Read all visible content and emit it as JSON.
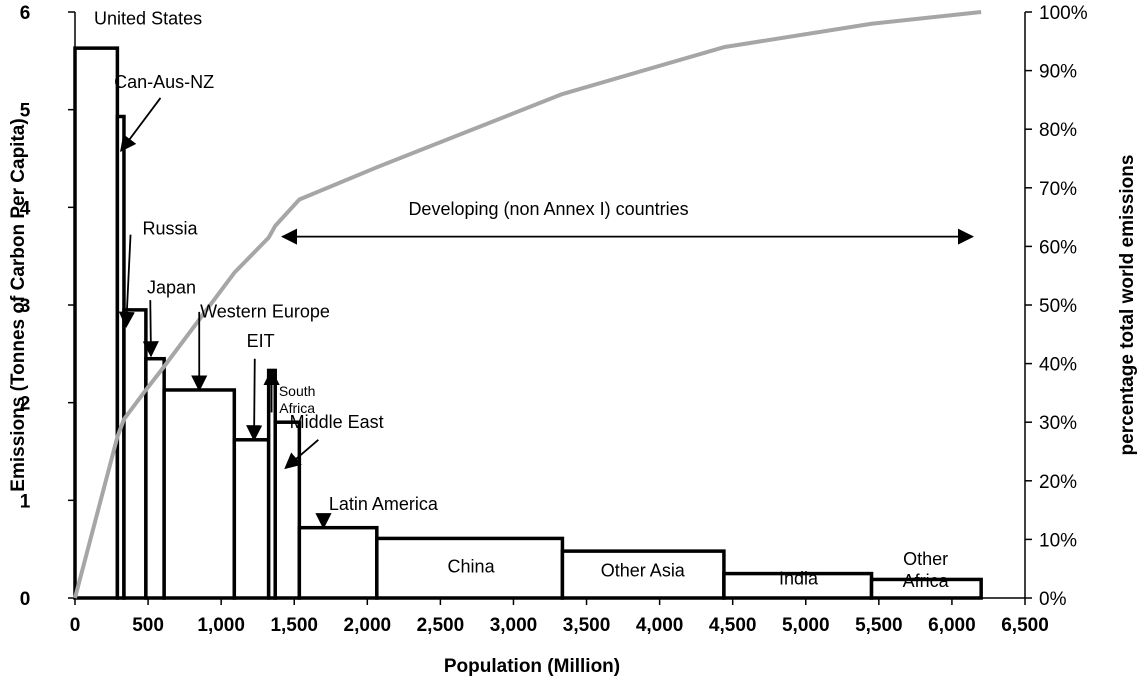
{
  "chart_data": {
    "type": "bar",
    "xlabel": "Population (Million)",
    "ylabel": "Emissions (Tonnes of Carbon Per Capita)",
    "y2label": "percentage total world emissions",
    "xlim": [
      0,
      6500
    ],
    "ylim": [
      0,
      6
    ],
    "y2lim": [
      0,
      100
    ],
    "x_ticks": [
      0,
      500,
      1000,
      1500,
      2000,
      2500,
      3000,
      3500,
      4000,
      4500,
      5000,
      5500,
      6000,
      6500
    ],
    "x_tick_labels": [
      "0",
      "500",
      "1,000",
      "1,500",
      "2,000",
      "2,500",
      "3,000",
      "3,500",
      "4,000",
      "4,500",
      "5,000",
      "5,500",
      "6,000",
      "6,500"
    ],
    "y_ticks": [
      0,
      1,
      2,
      3,
      4,
      5,
      6
    ],
    "y_tick_labels": [
      "0",
      "1",
      "2",
      "3",
      "4",
      "5",
      "6"
    ],
    "y2_ticks": [
      0,
      10,
      20,
      30,
      40,
      50,
      60,
      70,
      80,
      90,
      100
    ],
    "y2_tick_labels": [
      "0%",
      "10%",
      "20%",
      "30%",
      "40%",
      "50%",
      "60%",
      "70%",
      "80%",
      "90%",
      "100%"
    ],
    "bars": [
      {
        "name": "United States",
        "x0": 0,
        "x1": 290,
        "value": 5.63
      },
      {
        "name": "Can-Aus-NZ",
        "x0": 290,
        "x1": 335,
        "value": 4.93
      },
      {
        "name": "Russia",
        "x0": 335,
        "x1": 485,
        "value": 2.95
      },
      {
        "name": "Japan",
        "x0": 485,
        "x1": 610,
        "value": 2.45
      },
      {
        "name": "Western Europe",
        "x0": 610,
        "x1": 1090,
        "value": 2.13
      },
      {
        "name": "EIT",
        "x0": 1090,
        "x1": 1325,
        "value": 1.62
      },
      {
        "name": "South Africa",
        "x0": 1325,
        "x1": 1370,
        "value": 2.33
      },
      {
        "name": "Middle East",
        "x0": 1370,
        "x1": 1535,
        "value": 1.8
      },
      {
        "name": "Latin America",
        "x0": 1535,
        "x1": 2065,
        "value": 0.72
      },
      {
        "name": "China",
        "x0": 2065,
        "x1": 3335,
        "value": 0.61
      },
      {
        "name": "Other Asia",
        "x0": 3335,
        "x1": 4440,
        "value": 0.48
      },
      {
        "name": "India",
        "x0": 4440,
        "x1": 5450,
        "value": 0.25
      },
      {
        "name": "Other Africa",
        "x0": 5450,
        "x1": 6200,
        "value": 0.19
      }
    ],
    "cumulative_series": {
      "axis": "y2",
      "color": "#a6a6a6",
      "x": [
        0,
        290,
        335,
        485,
        610,
        1090,
        1325,
        1370,
        1535,
        2065,
        3335,
        4440,
        5450,
        6200
      ],
      "y": [
        0,
        27.5,
        30.5,
        35.5,
        39.5,
        55.5,
        61.5,
        63.5,
        68,
        73.5,
        86,
        94,
        98,
        100
      ]
    },
    "annotations": [
      {
        "text": "United States",
        "x": 500,
        "y": 5.87
      },
      {
        "text": "Can-Aus-NZ",
        "x": 610,
        "y": 5.22
      },
      {
        "text": "Russia",
        "x": 650,
        "y": 3.72
      },
      {
        "text": "Japan",
        "x": 660,
        "y": 3.12
      },
      {
        "text": "Western Europe",
        "x": 1300,
        "y": 2.87
      },
      {
        "text": "EIT",
        "x": 1270,
        "y": 2.57
      },
      {
        "text": "South Africa",
        "x": 1520,
        "y": 2.07
      },
      {
        "text": "Middle East",
        "x": 1790,
        "y": 1.74
      },
      {
        "text": "Latin America",
        "x": 2110,
        "y": 0.9
      },
      {
        "text": "China",
        "x": 2710,
        "y": 0.26
      },
      {
        "text": "Other Asia",
        "x": 3885,
        "y": 0.22
      },
      {
        "text": "India",
        "x": 4950,
        "y": 0.14
      },
      {
        "text": "Other Africa",
        "x": 5820,
        "y": 0.34
      },
      {
        "text": "Developing (non Annex I) countries",
        "x": 3240,
        "y": 3.92
      }
    ]
  }
}
